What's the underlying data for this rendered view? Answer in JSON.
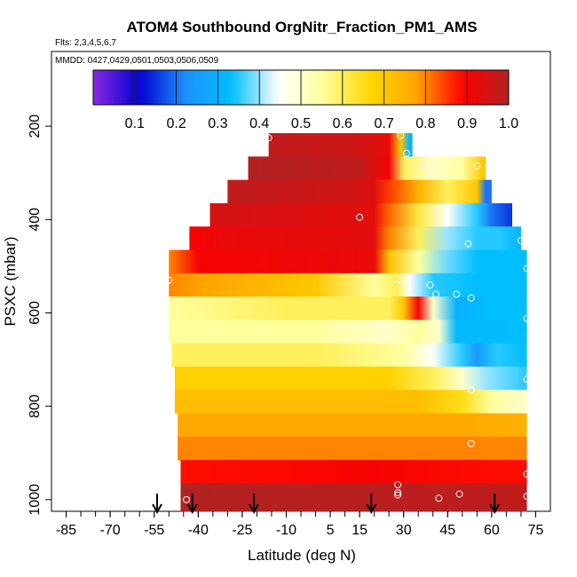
{
  "chart_data": {
    "type": "heatmap",
    "title": "ATOM4 Southbound OrgNitr_Fraction_PM1_AMS",
    "flights_label": "Flts: 2,3,4,5,6,7",
    "dates_label": "MMDD: 0427,0429,0501,0503,0506,0509",
    "xlabel": "Latitude (deg N)",
    "ylabel": "PSXC (mbar)",
    "x_ticks": [
      -85,
      -70,
      -55,
      -40,
      -25,
      -10,
      5,
      15,
      30,
      45,
      60,
      75
    ],
    "y_ticks": [
      200,
      400,
      600,
      800,
      1000
    ],
    "x_range": [
      -90,
      80
    ],
    "y_range": [
      1025,
      40
    ],
    "colorbar": {
      "ticks": [
        0.1,
        0.2,
        0.3,
        0.4,
        0.5,
        0.6,
        0.7,
        0.8,
        0.9,
        1.0
      ],
      "tick_labels": [
        "0.1",
        "0.2",
        "0.3",
        "0.4",
        "0.5",
        "0.6",
        "0.7",
        "0.8",
        "0.9",
        "1.0"
      ],
      "range": [
        0.0,
        1.0
      ],
      "colors": [
        "#8a2be2",
        "#0000cd",
        "#1e90ff",
        "#00bfff",
        "#ffffff",
        "#ffff99",
        "#ffd700",
        "#ffa500",
        "#ff0000",
        "#b22222"
      ]
    },
    "rows": [
      {
        "p_top": 215,
        "p_bot": 265,
        "lat_min": -16,
        "lat_max": 33,
        "stops": [
          [
            -16,
            0.98
          ],
          [
            15,
            0.96
          ],
          [
            25,
            0.92
          ],
          [
            29,
            0.7
          ],
          [
            32,
            0.3
          ],
          [
            33,
            0.3
          ]
        ]
      },
      {
        "p_top": 265,
        "p_bot": 315,
        "lat_min": -23,
        "lat_max": 58,
        "stops": [
          [
            -23,
            1.0
          ],
          [
            15,
            0.98
          ],
          [
            25,
            0.9
          ],
          [
            30,
            0.6
          ],
          [
            40,
            0.5
          ],
          [
            50,
            0.55
          ],
          [
            57,
            0.7
          ],
          [
            58,
            0.7
          ]
        ]
      },
      {
        "p_top": 315,
        "p_bot": 365,
        "lat_min": -30,
        "lat_max": 60,
        "stops": [
          [
            -30,
            0.98
          ],
          [
            10,
            0.96
          ],
          [
            20,
            0.94
          ],
          [
            25,
            0.85
          ],
          [
            35,
            0.75
          ],
          [
            45,
            0.6
          ],
          [
            55,
            0.7
          ],
          [
            58,
            0.2
          ],
          [
            60,
            0.2
          ]
        ]
      },
      {
        "p_top": 365,
        "p_bot": 415,
        "lat_min": -36,
        "lat_max": 67,
        "stops": [
          [
            -36,
            0.95
          ],
          [
            20,
            0.93
          ],
          [
            25,
            0.82
          ],
          [
            35,
            0.62
          ],
          [
            45,
            0.45
          ],
          [
            55,
            0.35
          ],
          [
            60,
            0.2
          ],
          [
            67,
            0.15
          ]
        ]
      },
      {
        "p_top": 415,
        "p_bot": 465,
        "lat_min": -43,
        "lat_max": 70,
        "stops": [
          [
            -43,
            0.9
          ],
          [
            -30,
            0.92
          ],
          [
            20,
            0.93
          ],
          [
            25,
            0.8
          ],
          [
            35,
            0.6
          ],
          [
            45,
            0.4
          ],
          [
            55,
            0.35
          ],
          [
            62,
            0.35
          ],
          [
            70,
            0.3
          ]
        ]
      },
      {
        "p_top": 465,
        "p_bot": 515,
        "lat_min": -50,
        "lat_max": 72,
        "stops": [
          [
            -50,
            0.8
          ],
          [
            -40,
            0.9
          ],
          [
            20,
            0.92
          ],
          [
            25,
            0.72
          ],
          [
            35,
            0.55
          ],
          [
            45,
            0.38
          ],
          [
            55,
            0.33
          ],
          [
            72,
            0.33
          ]
        ]
      },
      {
        "p_top": 515,
        "p_bot": 565,
        "lat_min": -50,
        "lat_max": 72,
        "stops": [
          [
            -50,
            0.8
          ],
          [
            -40,
            0.78
          ],
          [
            0,
            0.7
          ],
          [
            20,
            0.55
          ],
          [
            28,
            0.6
          ],
          [
            32,
            0.45
          ],
          [
            40,
            0.35
          ],
          [
            55,
            0.33
          ],
          [
            72,
            0.33
          ]
        ]
      },
      {
        "p_top": 565,
        "p_bot": 615,
        "lat_min": -50,
        "lat_max": 72,
        "stops": [
          [
            -50,
            0.55
          ],
          [
            -10,
            0.6
          ],
          [
            25,
            0.6
          ],
          [
            30,
            0.7
          ],
          [
            35,
            0.9
          ],
          [
            40,
            0.5
          ],
          [
            48,
            0.3
          ],
          [
            60,
            0.33
          ],
          [
            72,
            0.33
          ]
        ]
      },
      {
        "p_top": 615,
        "p_bot": 665,
        "lat_min": -50,
        "lat_max": 72,
        "stops": [
          [
            -50,
            0.55
          ],
          [
            0,
            0.55
          ],
          [
            25,
            0.5
          ],
          [
            35,
            0.55
          ],
          [
            42,
            0.5
          ],
          [
            48,
            0.32
          ],
          [
            72,
            0.33
          ]
        ]
      },
      {
        "p_top": 665,
        "p_bot": 715,
        "lat_min": -49,
        "lat_max": 72,
        "stops": [
          [
            -49,
            0.6
          ],
          [
            0,
            0.6
          ],
          [
            30,
            0.55
          ],
          [
            40,
            0.45
          ],
          [
            50,
            0.35
          ],
          [
            55,
            0.25
          ],
          [
            62,
            0.35
          ],
          [
            72,
            0.33
          ]
        ]
      },
      {
        "p_top": 715,
        "p_bot": 765,
        "lat_min": -48,
        "lat_max": 72,
        "stops": [
          [
            -48,
            0.68
          ],
          [
            25,
            0.68
          ],
          [
            40,
            0.6
          ],
          [
            50,
            0.5
          ],
          [
            58,
            0.4
          ],
          [
            72,
            0.35
          ]
        ]
      },
      {
        "p_top": 765,
        "p_bot": 815,
        "lat_min": -48,
        "lat_max": 72,
        "stops": [
          [
            -48,
            0.72
          ],
          [
            35,
            0.72
          ],
          [
            50,
            0.65
          ],
          [
            60,
            0.55
          ],
          [
            72,
            0.5
          ]
        ]
      },
      {
        "p_top": 815,
        "p_bot": 865,
        "lat_min": -47,
        "lat_max": 72,
        "stops": [
          [
            -47,
            0.77
          ],
          [
            50,
            0.77
          ],
          [
            72,
            0.75
          ]
        ]
      },
      {
        "p_top": 865,
        "p_bot": 915,
        "lat_min": -47,
        "lat_max": 72,
        "stops": [
          [
            -47,
            0.8
          ],
          [
            72,
            0.8
          ]
        ]
      },
      {
        "p_top": 915,
        "p_bot": 965,
        "lat_min": -46,
        "lat_max": 72,
        "stops": [
          [
            -46,
            0.88
          ],
          [
            20,
            0.9
          ],
          [
            72,
            0.88
          ]
        ]
      },
      {
        "p_top": 965,
        "p_bot": 1015,
        "lat_min": -46,
        "lat_max": 72,
        "stops": [
          [
            -46,
            1.0
          ],
          [
            72,
            0.98
          ]
        ]
      },
      {
        "p_top": 1015,
        "p_bot": 1025,
        "lat_min": -46,
        "lat_max": 72,
        "stops": [
          [
            -46,
            1.0
          ],
          [
            72,
            1.0
          ]
        ]
      }
    ],
    "points": [
      {
        "lat": -16,
        "p": 225
      },
      {
        "lat": 29,
        "p": 220
      },
      {
        "lat": 31,
        "p": 258
      },
      {
        "lat": 37,
        "p": 285
      },
      {
        "lat": 55,
        "p": 285
      },
      {
        "lat": 15,
        "p": 395
      },
      {
        "lat": 52,
        "p": 452
      },
      {
        "lat": 70,
        "p": 445
      },
      {
        "lat": 72,
        "p": 505
      },
      {
        "lat": -50,
        "p": 530
      },
      {
        "lat": 29,
        "p": 530
      },
      {
        "lat": 39,
        "p": 540
      },
      {
        "lat": 41,
        "p": 560
      },
      {
        "lat": 48,
        "p": 560
      },
      {
        "lat": 53,
        "p": 568
      },
      {
        "lat": 72,
        "p": 612
      },
      {
        "lat": 53,
        "p": 765
      },
      {
        "lat": 72,
        "p": 742
      },
      {
        "lat": 53,
        "p": 880
      },
      {
        "lat": 72,
        "p": 945
      },
      {
        "lat": 28,
        "p": 968
      },
      {
        "lat": 28,
        "p": 985
      },
      {
        "lat": 28,
        "p": 990
      },
      {
        "lat": 49,
        "p": 988
      },
      {
        "lat": 42,
        "p": 997
      },
      {
        "lat": 72,
        "p": 993
      },
      {
        "lat": -48,
        "p": 1000
      },
      {
        "lat": -44,
        "p": 1000
      }
    ],
    "arrows": [
      -54,
      -42,
      -21,
      19,
      61
    ]
  }
}
